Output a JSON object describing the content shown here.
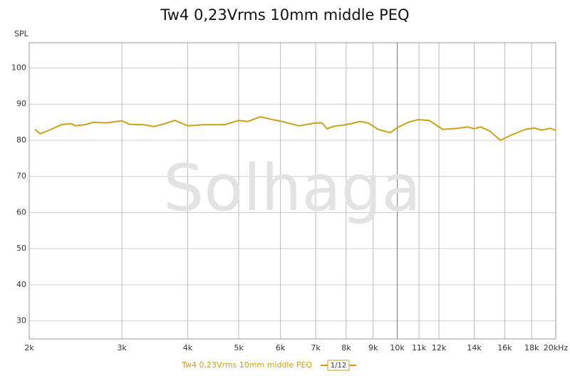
{
  "chart_data": {
    "type": "line",
    "title": "Tw4 0,23Vrms 10mm middle PEQ",
    "y_label": "SPL",
    "watermark": "Solhaga",
    "smoothing": "1/12",
    "x_scale": "log",
    "grid": true,
    "xlim": [
      2000,
      20000
    ],
    "ylim": [
      25,
      107
    ],
    "xticks": [
      {
        "value": 2000,
        "label": "2k"
      },
      {
        "value": 3000,
        "label": "3k"
      },
      {
        "value": 4000,
        "label": "4k"
      },
      {
        "value": 5000,
        "label": "5k"
      },
      {
        "value": 6000,
        "label": "6k"
      },
      {
        "value": 7000,
        "label": "7k"
      },
      {
        "value": 8000,
        "label": "8k"
      },
      {
        "value": 9000,
        "label": "9k"
      },
      {
        "value": 10000,
        "label": "10k"
      },
      {
        "value": 11000,
        "label": "11k"
      },
      {
        "value": 12000,
        "label": "12k"
      },
      {
        "value": 14000,
        "label": "14k"
      },
      {
        "value": 16000,
        "label": "16k"
      },
      {
        "value": 18000,
        "label": "18k"
      },
      {
        "value": 20000,
        "label": "20kHz"
      }
    ],
    "yticks": [
      30,
      40,
      50,
      60,
      70,
      80,
      90,
      100
    ],
    "x": [
      2050,
      2100,
      2200,
      2300,
      2400,
      2450,
      2550,
      2650,
      2800,
      3000,
      3100,
      3300,
      3450,
      3600,
      3780,
      4000,
      4300,
      4700,
      5000,
      5200,
      5500,
      5800,
      6000,
      6500,
      7000,
      7200,
      7350,
      7600,
      8000,
      8500,
      8800,
      9200,
      9700,
      10000,
      10500,
      10950,
      11500,
      12200,
      13000,
      13600,
      14000,
      14400,
      15000,
      15700,
      16500,
      17500,
      18200,
      18800,
      19500,
      20000
    ],
    "series": [
      {
        "name": "Tw4 0,23Vrms 10mm middle PEQ",
        "color": "#c9a21a",
        "values": [
          83.0,
          81.8,
          83.0,
          84.3,
          84.6,
          84.0,
          84.3,
          85.0,
          84.8,
          85.4,
          84.4,
          84.3,
          83.8,
          84.5,
          85.5,
          84.0,
          84.3,
          84.3,
          85.5,
          85.2,
          86.5,
          85.7,
          85.3,
          84.0,
          84.8,
          84.8,
          83.2,
          83.9,
          84.3,
          85.2,
          84.8,
          83.0,
          82.1,
          83.5,
          85.0,
          85.7,
          85.5,
          83.0,
          83.3,
          83.7,
          83.2,
          83.7,
          82.5,
          80.0,
          81.5,
          83.0,
          83.4,
          82.8,
          83.3,
          82.8
        ]
      }
    ]
  }
}
